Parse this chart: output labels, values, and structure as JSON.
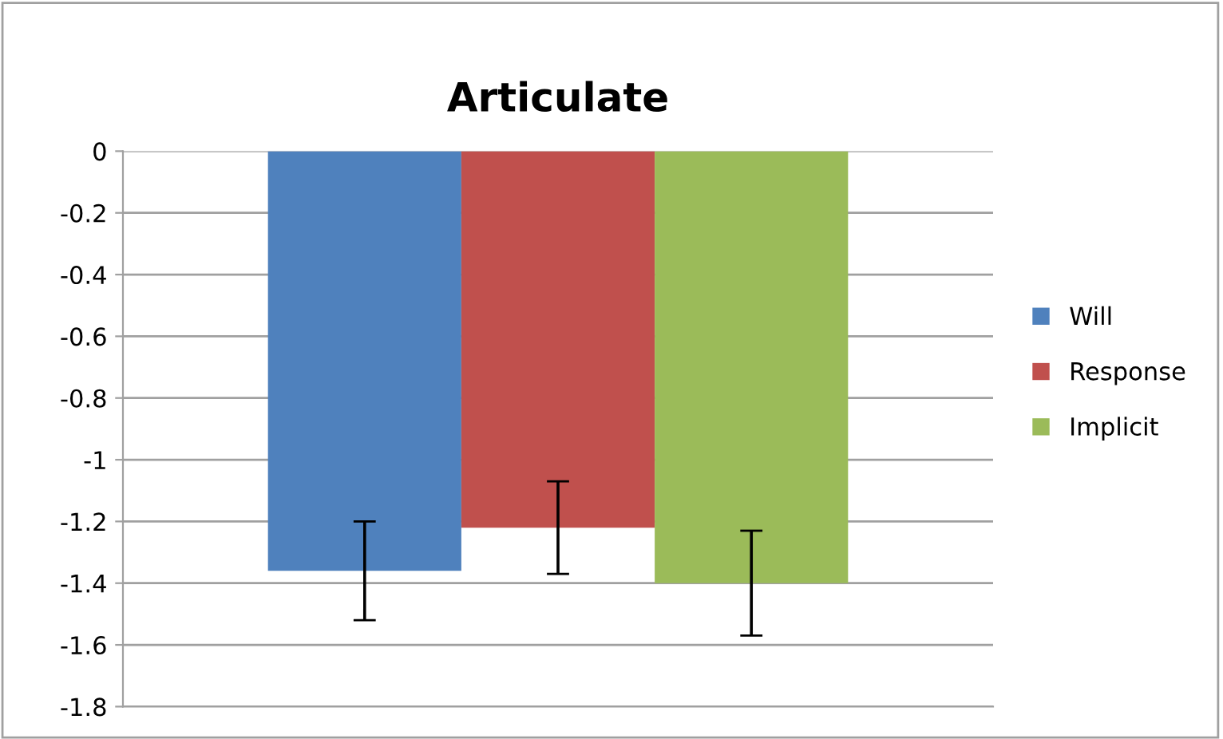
{
  "chart_data": {
    "type": "bar",
    "title": "Articulate",
    "categories": [
      null
    ],
    "series": [
      {
        "name": "Will",
        "color": "#4f81bd",
        "values": [
          -1.36
        ],
        "errors": [
          0.16
        ]
      },
      {
        "name": "Response",
        "color": "#c0504d",
        "values": [
          -1.22
        ],
        "errors": [
          0.15
        ]
      },
      {
        "name": "Implicit",
        "color": "#9bbb59",
        "values": [
          -1.4
        ],
        "errors": [
          0.17
        ]
      }
    ],
    "ylim": [
      -1.8,
      0
    ],
    "yticks": [
      0,
      -0.2,
      -0.4,
      -0.6,
      -0.8,
      -1,
      -1.2,
      -1.4,
      -1.6,
      -1.8
    ],
    "grid": "y",
    "legend": "right"
  }
}
